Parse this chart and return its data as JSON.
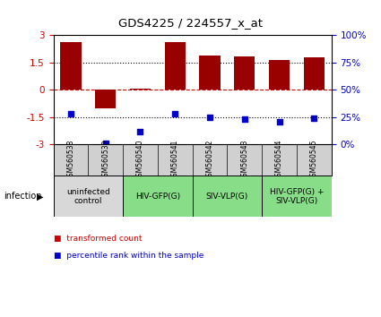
{
  "title": "GDS4225 / 224557_x_at",
  "samples": [
    "GSM560538",
    "GSM560539",
    "GSM560540",
    "GSM560541",
    "GSM560542",
    "GSM560543",
    "GSM560544",
    "GSM560545"
  ],
  "bar_values": [
    2.6,
    -1.0,
    0.05,
    2.6,
    1.85,
    1.8,
    1.65,
    1.75
  ],
  "dot_values": [
    -1.3,
    -2.95,
    -2.3,
    -1.3,
    -1.5,
    -1.6,
    -1.75,
    -1.55
  ],
  "ylim": [
    -3,
    3
  ],
  "yticks": [
    -3,
    -1.5,
    0,
    1.5,
    3
  ],
  "ytick_labels_left": [
    "-3",
    "-1.5",
    "0",
    "1.5",
    "3"
  ],
  "ytick_labels_right": [
    "0%",
    "25%",
    "50%",
    "75%",
    "100%"
  ],
  "bar_color": "#990000",
  "dot_color": "#0000cc",
  "groups": [
    {
      "label": "uninfected\ncontrol",
      "start": 0,
      "end": 2,
      "color": "#d8d8d8"
    },
    {
      "label": "HIV-GFP(G)",
      "start": 2,
      "end": 4,
      "color": "#88dd88"
    },
    {
      "label": "SIV-VLP(G)",
      "start": 4,
      "end": 6,
      "color": "#88dd88"
    },
    {
      "label": "HIV-GFP(G) +\nSIV-VLP(G)",
      "start": 6,
      "end": 8,
      "color": "#88dd88"
    }
  ],
  "infection_label": "infection",
  "legend_items": [
    {
      "label": "transformed count",
      "color": "#cc0000"
    },
    {
      "label": "percentile rank within the sample",
      "color": "#0000cc"
    }
  ],
  "tick_label_color_left": "#cc0000",
  "tick_label_color_right": "#0000cc",
  "bg_color": "#ffffff",
  "sample_box_color": "#d0d0d0"
}
